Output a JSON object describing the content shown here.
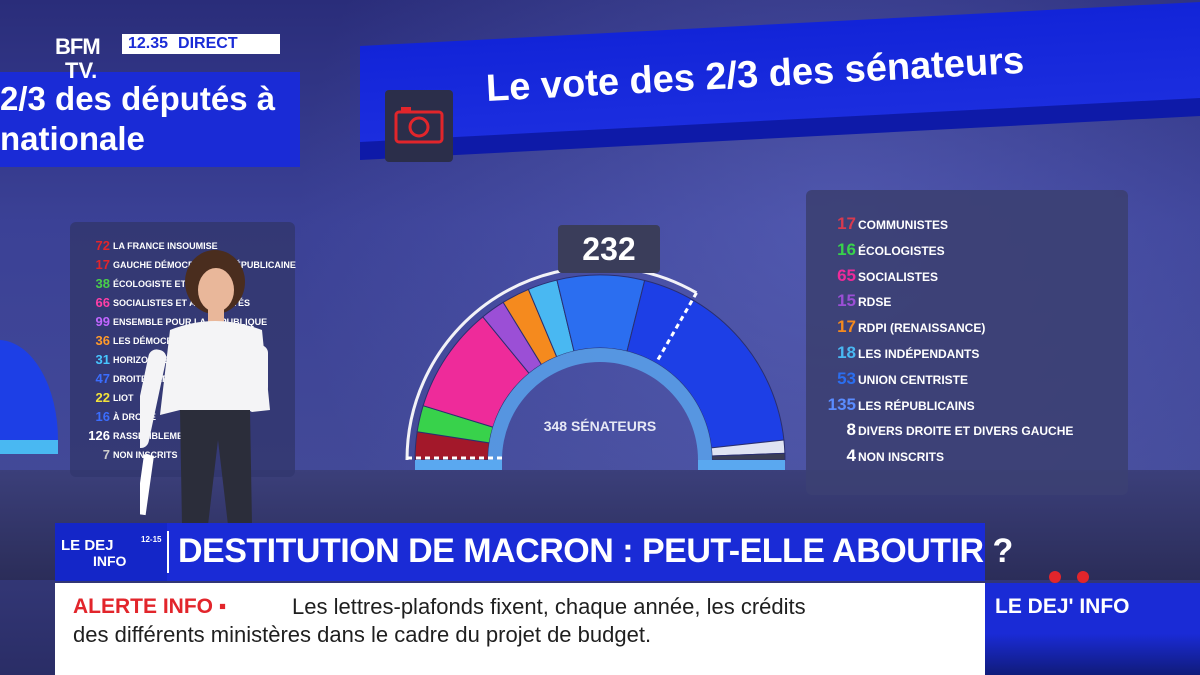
{
  "channel": {
    "logo_line1": "BFM",
    "logo_line2": "TV.",
    "time": "12.35",
    "live_label": "DIRECT"
  },
  "headline_left": {
    "line1": "2/3 des députés à",
    "line2": "nationale"
  },
  "headline_right": {
    "title": "Le vote des 2/3 des sénateurs",
    "icon": "camera-icon"
  },
  "deputies_legend": [
    {
      "count": "72",
      "label": "LA FRANCE INSOUMISE",
      "color": "#e2252b"
    },
    {
      "count": "17",
      "label": "GAUCHE DÉMOCRATE ET RÉPUBLICAINE",
      "color": "#e2252b"
    },
    {
      "count": "38",
      "label": "ÉCOLOGISTE ET SOCIAL",
      "color": "#4ad04a"
    },
    {
      "count": "66",
      "label": "SOCIALISTES ET APPARENTÉS",
      "color": "#ff3fa6"
    },
    {
      "count": "99",
      "label": "ENSEMBLE POUR LA RÉPUBLIQUE",
      "color": "#c266ff"
    },
    {
      "count": "36",
      "label": "LES DÉMOCRATES",
      "color": "#ff9a2a"
    },
    {
      "count": "31",
      "label": "HORIZONS ET INDÉPENDANTS",
      "color": "#47c6ff"
    },
    {
      "count": "47",
      "label": "DROITE RÉPUBLICAINE",
      "color": "#3a6dff"
    },
    {
      "count": "22",
      "label": "LIOT",
      "color": "#f2e23a"
    },
    {
      "count": "16",
      "label": "À DROITE",
      "color": "#3a6dff"
    },
    {
      "count": "126",
      "label": "RASSEMBLEMENT NATIONAL",
      "color": "#ffffff"
    },
    {
      "count": "7",
      "label": "NON INSCRITS",
      "color": "#cccccc"
    }
  ],
  "senate": {
    "threshold": "232",
    "center_label": "348 SÉNATEURS",
    "total": 348
  },
  "chart_data": {
    "type": "pie",
    "shape": "hemicycle",
    "title": "Le vote des 2/3 des sénateurs",
    "total": 348,
    "threshold": 232,
    "series": [
      {
        "name": "COMMUNISTES",
        "value": 17,
        "color": "#a3182a"
      },
      {
        "name": "ÉCOLOGISTES",
        "value": 16,
        "color": "#38d24b"
      },
      {
        "name": "SOCIALISTES",
        "value": 65,
        "color": "#ee2b9a"
      },
      {
        "name": "RDSE",
        "value": 15,
        "color": "#9b4fd6"
      },
      {
        "name": "RDPI (RENAISSANCE)",
        "value": 17,
        "color": "#f58a1e"
      },
      {
        "name": "LES INDÉPENDANTS",
        "value": 18,
        "color": "#49b8f2"
      },
      {
        "name": "UNION CENTRISTE",
        "value": 53,
        "color": "#2b6ef0"
      },
      {
        "name": "LES RÉPUBLICAINS",
        "value": 135,
        "color": "#1d3fe6"
      },
      {
        "name": "DIVERS DROITE ET DIVERS GAUCHE",
        "value": 8,
        "color": "#dfe3f2"
      },
      {
        "name": "NON INSCRITS",
        "value": 4,
        "color": "#3a3d55"
      }
    ]
  },
  "lower_third": {
    "show_logo_a": "LE DEJ",
    "show_logo_b": "INFO",
    "show_logo_c": "12-15",
    "title": "DESTITUTION DE MACRON : PEUT-ELLE ABOUTIR ?"
  },
  "ticker": {
    "alert": "ALERTE INFO ▪",
    "line1": "Les lettres-plafonds fixent, chaque année, les crédits",
    "line2": "des différents ministères dans le cadre du projet de budget."
  },
  "side": {
    "label": "LE DEJ' INFO"
  }
}
